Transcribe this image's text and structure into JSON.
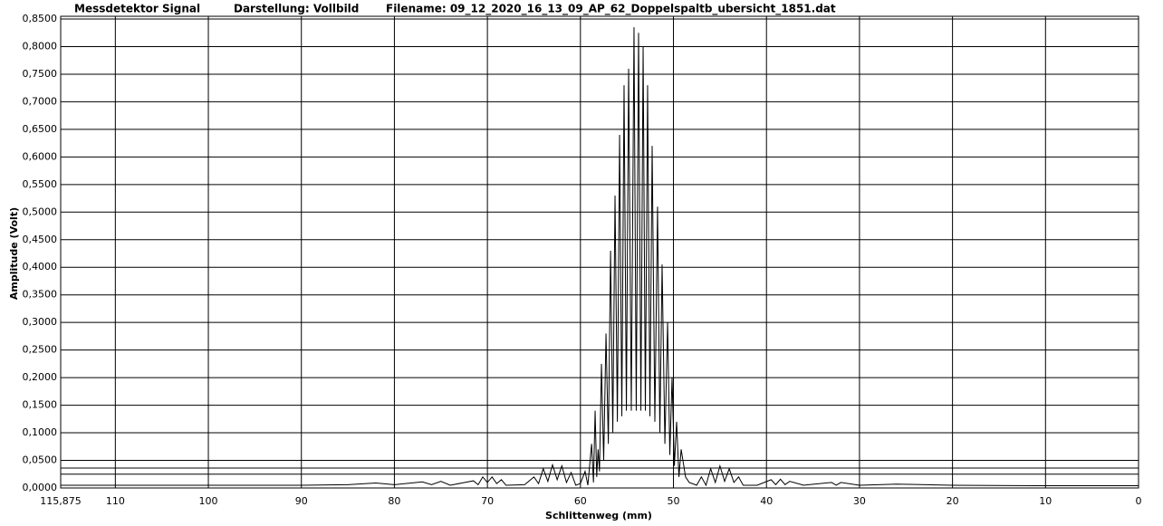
{
  "chart_data": {
    "type": "line",
    "title": "Messdetektor Signal",
    "subtitle": "Darstellung: Vollbild",
    "filename": "Filename: 09_12_2020_16_13_09_AP_62_Doppelspaltb_ubersicht_1851.dat",
    "x_label": "Schlittenweg (mm)",
    "y_label": "Amplitude (Volt)",
    "color": "#000000",
    "grid": true,
    "xlim": [
      115.875,
      0
    ],
    "ylim": [
      0,
      0.85
    ],
    "xticks": [
      {
        "value": 115.875,
        "label": "115,875"
      },
      110,
      100,
      90,
      80,
      70,
      60,
      50,
      40,
      30,
      20,
      10,
      0
    ],
    "yticks": [
      {
        "value": 0,
        "label": "0,0000"
      },
      {
        "value": 0.05,
        "label": "0,0500"
      },
      {
        "value": 0.1,
        "label": "0,1000"
      },
      {
        "value": 0.15,
        "label": "0,1500"
      },
      {
        "value": 0.2,
        "label": "0,2000"
      },
      {
        "value": 0.25,
        "label": "0,2500"
      },
      {
        "value": 0.3,
        "label": "0,3000"
      },
      {
        "value": 0.35,
        "label": "0,3500"
      },
      {
        "value": 0.4,
        "label": "0,4000"
      },
      {
        "value": 0.45,
        "label": "0,4500"
      },
      {
        "value": 0.5,
        "label": "0,5000"
      },
      {
        "value": 0.55,
        "label": "0,5500"
      },
      {
        "value": 0.6,
        "label": "0,6000"
      },
      {
        "value": 0.65,
        "label": "0,6500"
      },
      {
        "value": 0.7,
        "label": "0,7000"
      },
      {
        "value": 0.75,
        "label": "0,7500"
      },
      {
        "value": 0.8,
        "label": "0,8000"
      },
      {
        "value": 0.85,
        "label": "0,8500"
      }
    ],
    "hlines": [
      0.036,
      0.025
    ],
    "x": [
      115.875,
      110,
      100,
      90,
      85,
      82,
      80,
      77,
      76,
      75,
      74,
      71.5,
      71,
      70.5,
      70,
      69.5,
      69,
      68.5,
      68,
      66,
      65,
      64.5,
      64,
      63.5,
      63,
      62.5,
      62,
      61.5,
      61,
      60.5,
      60,
      59.5,
      59.2,
      58.8,
      58.6,
      58.42,
      58.25,
      58.1,
      57.95,
      57.74,
      57.5,
      57.25,
      57.0,
      56.76,
      56.52,
      56.28,
      56.03,
      55.79,
      55.55,
      55.31,
      55.06,
      54.82,
      54.53,
      54.24,
      54.0,
      53.75,
      53.5,
      53.26,
      53.02,
      52.78,
      52.53,
      52.29,
      52.0,
      51.71,
      51.46,
      51.22,
      50.92,
      50.63,
      50.39,
      50.15,
      49.9,
      49.66,
      49.41,
      49.17,
      48.7,
      48.3,
      47.5,
      47,
      46.5,
      46,
      45.5,
      45,
      44.5,
      44,
      43.5,
      43,
      42.5,
      41,
      39.5,
      39,
      38.5,
      38,
      37.5,
      36,
      33,
      32.5,
      32,
      30,
      26,
      20,
      10,
      0
    ],
    "values": [
      0.005,
      0.005,
      0.005,
      0.005,
      0.006,
      0.009,
      0.006,
      0.011,
      0.006,
      0.012,
      0.005,
      0.013,
      0.006,
      0.02,
      0.01,
      0.02,
      0.008,
      0.015,
      0.005,
      0.006,
      0.02,
      0.008,
      0.035,
      0.012,
      0.042,
      0.015,
      0.04,
      0.01,
      0.028,
      0.005,
      0.008,
      0.03,
      0.005,
      0.08,
      0.01,
      0.14,
      0.02,
      0.07,
      0.03,
      0.225,
      0.05,
      0.28,
      0.08,
      0.43,
      0.1,
      0.53,
      0.12,
      0.64,
      0.13,
      0.73,
      0.14,
      0.76,
      0.14,
      0.835,
      0.14,
      0.825,
      0.14,
      0.8,
      0.14,
      0.73,
      0.13,
      0.62,
      0.12,
      0.51,
      0.1,
      0.405,
      0.08,
      0.3,
      0.06,
      0.2,
      0.04,
      0.12,
      0.02,
      0.07,
      0.02,
      0.01,
      0.005,
      0.02,
      0.005,
      0.035,
      0.01,
      0.04,
      0.012,
      0.035,
      0.01,
      0.02,
      0.005,
      0.005,
      0.015,
      0.006,
      0.016,
      0.006,
      0.012,
      0.005,
      0.01,
      0.005,
      0.01,
      0.005,
      0.007,
      0.005,
      0.004,
      0.004
    ]
  }
}
